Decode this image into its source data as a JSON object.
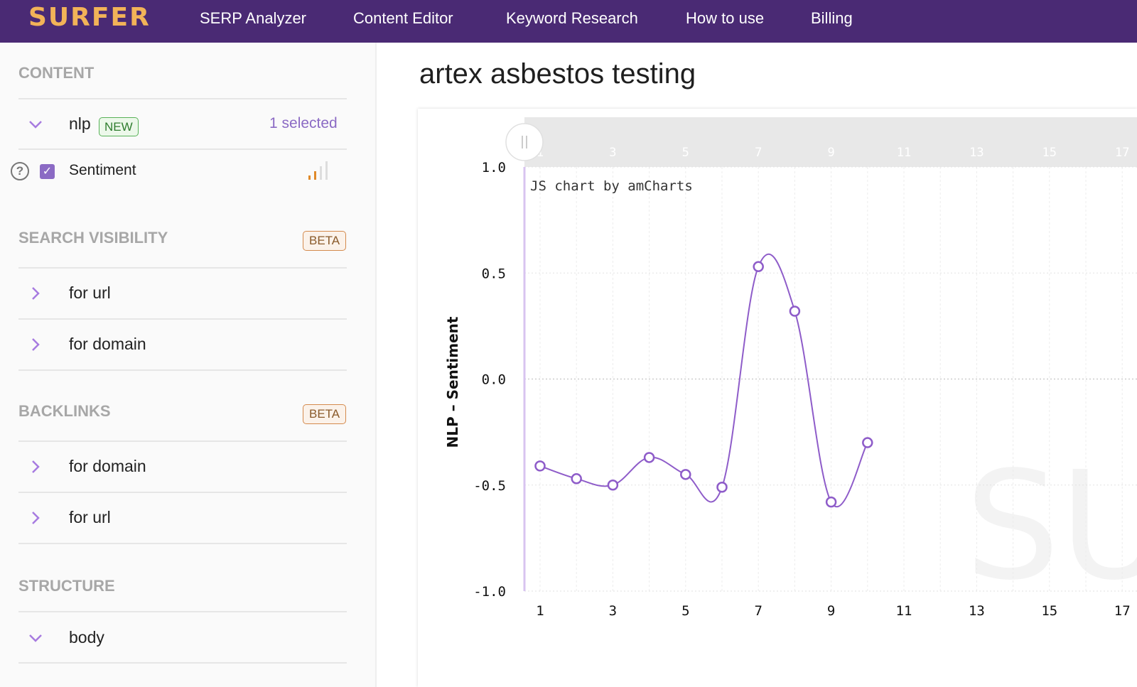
{
  "nav": {
    "logo": "SURFER",
    "items": [
      "SERP Analyzer",
      "Content Editor",
      "Keyword Research",
      "How to use",
      "Billing"
    ]
  },
  "sidebar": {
    "content": {
      "title": "CONTENT",
      "nlp_label": "nlp",
      "new_badge": "NEW",
      "selected_text": "1 selected",
      "sentiment_label": "Sentiment",
      "sentiment_checked": true,
      "help_icon": "?"
    },
    "search_visibility": {
      "title": "SEARCH VISIBILITY",
      "badge": "BETA",
      "items": [
        "for url",
        "for domain"
      ]
    },
    "backlinks": {
      "title": "BACKLINKS",
      "badge": "BETA",
      "items": [
        "for domain",
        "for url"
      ]
    },
    "structure": {
      "title": "STRUCTURE",
      "items": [
        "body"
      ]
    }
  },
  "main": {
    "title": "artex asbestos testing"
  },
  "chart_data": {
    "type": "line",
    "ylabel": "NLP – Sentiment",
    "xlabel": "",
    "watermark": "JS chart by amCharts",
    "ylim": [
      -1.0,
      1.0
    ],
    "xlim": [
      1,
      17
    ],
    "y_ticks": [
      "1.0",
      "0.5",
      "0.0",
      "-0.5",
      "-1.0"
    ],
    "x_ticks": [
      "1",
      "3",
      "5",
      "7",
      "9",
      "11",
      "13",
      "15",
      "17"
    ],
    "grid": true,
    "series": [
      {
        "name": "",
        "color": "#8e5cc9",
        "x": [
          1,
          2,
          3,
          4,
          5,
          6,
          7,
          8,
          9,
          10
        ],
        "y": [
          -0.41,
          -0.47,
          -0.5,
          -0.37,
          -0.45,
          -0.51,
          0.53,
          0.32,
          -0.58,
          -0.3
        ]
      }
    ]
  },
  "colors": {
    "brand": "#4a2a74",
    "logo": "#f2b358",
    "accent": "#8b6ac4"
  }
}
